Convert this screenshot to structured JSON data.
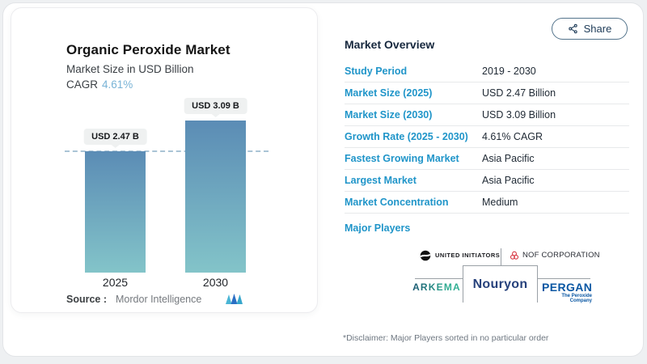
{
  "header": {
    "share_label": "Share"
  },
  "chart_panel": {
    "title": "Organic Peroxide Market",
    "subtitle": "Market Size in USD Billion",
    "cagr_label": "CAGR",
    "cagr_value": "4.61%",
    "source_label": "Source :",
    "source_value": "Mordor Intelligence"
  },
  "chart_data": {
    "type": "bar",
    "title": "Organic Peroxide Market",
    "ylabel": "Market Size in USD Billion",
    "unit": "USD Billion",
    "categories": [
      "2025",
      "2030"
    ],
    "values": [
      2.47,
      3.09
    ],
    "value_labels": [
      "USD 2.47 B",
      "USD 3.09 B"
    ],
    "cagr": "4.61%",
    "reference_line": 2.47,
    "ylim": [
      0,
      3.09
    ],
    "grid": false,
    "legend": false,
    "bar_colors": [
      "#5b8cb5",
      "#83c4c9"
    ]
  },
  "overview": {
    "title": "Market Overview",
    "rows": [
      {
        "label": "Study Period",
        "value": "2019 - 2030"
      },
      {
        "label": "Market Size (2025)",
        "value": "USD 2.47 Billion"
      },
      {
        "label": "Market Size (2030)",
        "value": "USD 3.09 Billion"
      },
      {
        "label": "Growth Rate (2025 - 2030)",
        "value": "4.61% CAGR"
      },
      {
        "label": "Fastest Growing Market",
        "value": "Asia Pacific"
      },
      {
        "label": "Largest Market",
        "value": "Asia Pacific"
      },
      {
        "label": "Market Concentration",
        "value": "Medium"
      }
    ],
    "major_players_label": "Major Players",
    "players": [
      {
        "name": "UNITED INITIATORS"
      },
      {
        "name": "NOF CORPORATION"
      },
      {
        "name": "ARKEMA"
      },
      {
        "name": "Nouryon"
      },
      {
        "name": "PERGAN",
        "tagline": "The Peroxide Company"
      }
    ],
    "disclaimer": "*Disclaimer: Major Players sorted in no particular order"
  },
  "colors": {
    "accent_blue": "#2095c9",
    "heading_navy": "#16273d",
    "value_text": "#212b36",
    "cagr_value": "#79b3d6",
    "dashed_line": "#aac4d5",
    "bar_gradient_top": "#5b8cb5",
    "bar_gradient_bottom": "#83c4c9",
    "nouryon_navy": "#27427c",
    "arkema_teal": "#27988a",
    "pergan_blue": "#0a57a3",
    "nof_red": "#d6333f"
  }
}
